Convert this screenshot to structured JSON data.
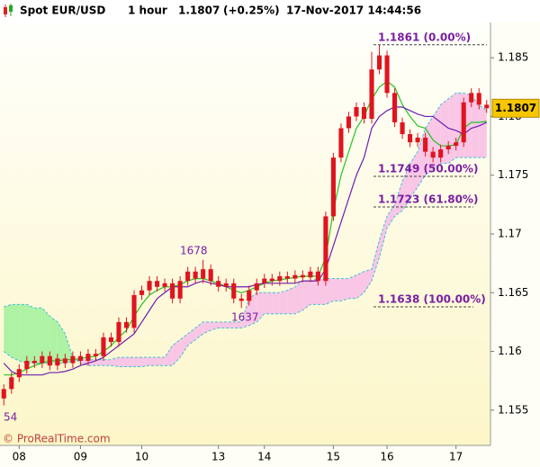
{
  "chart_data": {
    "type": "candlestick",
    "instrument": "Spot EUR/USD",
    "timeframe": "1 hour",
    "last": "1.1807",
    "change": "(+0.25%)",
    "datetime": "17-Nov-2017 14:44:56",
    "watermark": "© ProRealTime.com",
    "annotations": [
      "1678",
      "1637",
      "54"
    ],
    "categories": [
      null,
      null,
      "08",
      null,
      null,
      null,
      null,
      null,
      null,
      null,
      "09",
      null,
      null,
      null,
      null,
      null,
      null,
      null,
      "10",
      null,
      null,
      null,
      null,
      null,
      null,
      null,
      null,
      null,
      "13",
      null,
      null,
      null,
      null,
      null,
      "14",
      null,
      null,
      null,
      null,
      null,
      null,
      null,
      null,
      "15",
      null,
      null,
      null,
      null,
      null,
      null,
      "16",
      null,
      null,
      null,
      null,
      null,
      null,
      null,
      null,
      "17",
      null,
      null,
      null,
      null
    ],
    "open": [
      1.156,
      1.1568,
      1.1578,
      1.1585,
      1.1592,
      1.159,
      1.1596,
      1.1588,
      1.1594,
      1.159,
      1.1596,
      1.1592,
      1.1598,
      1.1596,
      1.1612,
      1.1608,
      1.1625,
      1.162,
      1.1648,
      1.1652,
      1.166,
      1.1655,
      1.1658,
      1.1645,
      1.166,
      1.1668,
      1.1662,
      1.167,
      1.166,
      1.1655,
      1.1658,
      1.1645,
      1.1643,
      1.1652,
      1.1658,
      1.1662,
      1.166,
      1.1664,
      1.1662,
      1.1665,
      1.1663,
      1.1668,
      1.166,
      1.1715,
      1.1765,
      1.179,
      1.18,
      1.1808,
      1.1798,
      1.184,
      1.1852,
      1.182,
      1.1795,
      1.1785,
      1.1778,
      1.1782,
      1.177,
      1.1765,
      1.1772,
      1.1775,
      1.1778,
      1.1812,
      1.182,
      1.181
    ],
    "high": [
      1.1572,
      1.1582,
      1.1589,
      1.1596,
      1.1596,
      1.16,
      1.16,
      1.1598,
      1.1598,
      1.16,
      1.16,
      1.1602,
      1.1602,
      1.1616,
      1.1616,
      1.1629,
      1.1629,
      1.1652,
      1.1656,
      1.1664,
      1.1664,
      1.1662,
      1.1662,
      1.1664,
      1.1672,
      1.1672,
      1.1678,
      1.1674,
      1.1664,
      1.1662,
      1.1662,
      1.1649,
      1.1656,
      1.1662,
      1.1666,
      1.1666,
      1.1668,
      1.1668,
      1.1669,
      1.1669,
      1.1672,
      1.1672,
      1.1719,
      1.1769,
      1.1794,
      1.1804,
      1.1812,
      1.1812,
      1.1855,
      1.1861,
      1.1856,
      1.1824,
      1.1799,
      1.1789,
      1.1786,
      1.1786,
      1.1774,
      1.1776,
      1.1779,
      1.1782,
      1.1816,
      1.1824,
      1.1824,
      1.1814
    ],
    "low": [
      1.1554,
      1.1564,
      1.1574,
      1.1581,
      1.1586,
      1.1586,
      1.1584,
      1.1584,
      1.1586,
      1.1586,
      1.1588,
      1.1588,
      1.1592,
      1.1592,
      1.1604,
      1.1604,
      1.1616,
      1.1616,
      1.1644,
      1.1648,
      1.1651,
      1.1651,
      1.1641,
      1.1641,
      1.1656,
      1.1658,
      1.1658,
      1.1656,
      1.1651,
      1.1651,
      1.1641,
      1.1637,
      1.1639,
      1.1648,
      1.1654,
      1.1656,
      1.1656,
      1.1658,
      1.1658,
      1.1659,
      1.1659,
      1.1656,
      1.1656,
      1.1711,
      1.1761,
      1.1786,
      1.1796,
      1.1794,
      1.1794,
      1.1836,
      1.1816,
      1.1791,
      1.1781,
      1.1774,
      1.1774,
      1.1766,
      1.1761,
      1.1761,
      1.1768,
      1.1771,
      1.1774,
      1.1808,
      1.1806,
      1.1803
    ],
    "close": [
      1.1568,
      1.1578,
      1.1585,
      1.1592,
      1.159,
      1.1596,
      1.1588,
      1.1594,
      1.159,
      1.1596,
      1.1592,
      1.1598,
      1.1596,
      1.1612,
      1.1608,
      1.1625,
      1.162,
      1.1648,
      1.1652,
      1.166,
      1.1655,
      1.1658,
      1.1645,
      1.166,
      1.1668,
      1.1662,
      1.167,
      1.166,
      1.1655,
      1.1658,
      1.1645,
      1.1643,
      1.1652,
      1.1658,
      1.1662,
      1.166,
      1.1664,
      1.1662,
      1.1665,
      1.1663,
      1.1668,
      1.166,
      1.1715,
      1.1765,
      1.179,
      1.18,
      1.1808,
      1.1798,
      1.184,
      1.1852,
      1.182,
      1.1795,
      1.1785,
      1.1778,
      1.1782,
      1.177,
      1.1765,
      1.1772,
      1.1775,
      1.1778,
      1.1812,
      1.182,
      1.181,
      1.1807
    ],
    "candle_color": "#e0141e",
    "lines": [
      {
        "color": "#22c322",
        "values": [
          1.158,
          1.158,
          1.1582,
          1.1585,
          1.1588,
          1.159,
          1.1592,
          1.1592,
          1.1593,
          1.1593,
          1.1594,
          1.1595,
          1.1596,
          1.16,
          1.1605,
          1.1612,
          1.1618,
          1.163,
          1.164,
          1.1648,
          1.1652,
          1.1655,
          1.1655,
          1.1657,
          1.166,
          1.1662,
          1.1662,
          1.166,
          1.1658,
          1.1655,
          1.1652,
          1.165,
          1.1652,
          1.1655,
          1.1658,
          1.166,
          1.1661,
          1.1662,
          1.1663,
          1.1664,
          1.1664,
          1.1664,
          1.168,
          1.172,
          1.175,
          1.177,
          1.179,
          1.18,
          1.1815,
          1.1825,
          1.183,
          1.1825,
          1.181,
          1.18,
          1.1792,
          1.179,
          1.178,
          1.1775,
          1.1775,
          1.1776,
          1.179,
          1.1795,
          1.1795,
          1.1796
        ]
      },
      {
        "color": "#6a1fb0",
        "values": [
          1.159,
          1.1583,
          1.158,
          1.158,
          1.158,
          1.158,
          1.1582,
          1.1582,
          1.1583,
          1.1585,
          1.1588,
          1.159,
          1.1592,
          1.1595,
          1.16,
          1.1605,
          1.161,
          1.1615,
          1.1625,
          1.1635,
          1.1645,
          1.165,
          1.1655,
          1.1655,
          1.1655,
          1.1658,
          1.166,
          1.1658,
          1.1657,
          1.1655,
          1.1655,
          1.1655,
          1.1655,
          1.1657,
          1.1658,
          1.1658,
          1.1658,
          1.1658,
          1.1658,
          1.166,
          1.166,
          1.166,
          1.167,
          1.169,
          1.171,
          1.173,
          1.175,
          1.1765,
          1.179,
          1.18,
          1.1805,
          1.1808,
          1.1808,
          1.1805,
          1.1802,
          1.18,
          1.18,
          1.1795,
          1.179,
          1.1788,
          1.1785,
          1.179,
          1.1792,
          1.1795
        ]
      }
    ],
    "cloud": {
      "up_color": "#aef2a4",
      "down_color": "#f9c6e6",
      "edge_color": "#3fc0d8",
      "span_a": [
        1.1638,
        1.164,
        1.164,
        1.164,
        1.1637,
        1.1637,
        1.163,
        1.1625,
        1.1615,
        1.1595,
        1.159,
        1.1588,
        1.1588,
        1.1588,
        1.1588,
        1.1587,
        1.1587,
        1.1587,
        1.1587,
        1.1588,
        1.1588,
        1.1588,
        1.1588,
        1.1595,
        1.1605,
        1.161,
        1.1615,
        1.1618,
        1.162,
        1.162,
        1.162,
        1.162,
        1.1622,
        1.1625,
        1.1632,
        1.1632,
        1.1632,
        1.1632,
        1.1632,
        1.1635,
        1.164,
        1.164,
        1.164,
        1.1643,
        1.1643,
        1.1645,
        1.1645,
        1.165,
        1.166,
        1.168,
        1.1705,
        1.1715,
        1.172,
        1.173,
        1.174,
        1.175,
        1.1755,
        1.176,
        1.176,
        1.1765,
        1.1765,
        1.1765,
        1.1765,
        1.1765
      ],
      "span_b": [
        1.16,
        1.1595,
        1.1592,
        1.159,
        1.159,
        1.159,
        1.159,
        1.159,
        1.159,
        1.1592,
        1.1593,
        1.1593,
        1.1593,
        1.1593,
        1.1593,
        1.1595,
        1.1595,
        1.1595,
        1.1595,
        1.1595,
        1.1595,
        1.1595,
        1.1605,
        1.161,
        1.1615,
        1.162,
        1.1625,
        1.1625,
        1.1625,
        1.1625,
        1.1625,
        1.1625,
        1.1645,
        1.165,
        1.165,
        1.165,
        1.165,
        1.1652,
        1.1655,
        1.166,
        1.166,
        1.1662,
        1.1662,
        1.1662,
        1.1662,
        1.1662,
        1.1665,
        1.1668,
        1.167,
        1.1695,
        1.1715,
        1.1725,
        1.1745,
        1.176,
        1.177,
        1.179,
        1.18,
        1.181,
        1.1815,
        1.182,
        1.182,
        1.1818,
        1.181,
        1.1805
      ]
    },
    "fib_levels": [
      {
        "value": 1.1861,
        "label": "1.1861 (0.00%)"
      },
      {
        "value": 1.1749,
        "label": "1.1749 (50.00%)"
      },
      {
        "value": 1.1723,
        "label": "1.1723 (61.80%)"
      },
      {
        "value": 1.1638,
        "label": "1.1638 (100.00%)"
      }
    ],
    "fib_color": "#7a1fa2",
    "last_value": 1.1807,
    "badge_color": "#f7c600",
    "ylim": [
      1.152,
      1.188
    ],
    "yticks": [
      1.155,
      1.16,
      1.165,
      1.17,
      1.175,
      1.18,
      1.185
    ]
  }
}
